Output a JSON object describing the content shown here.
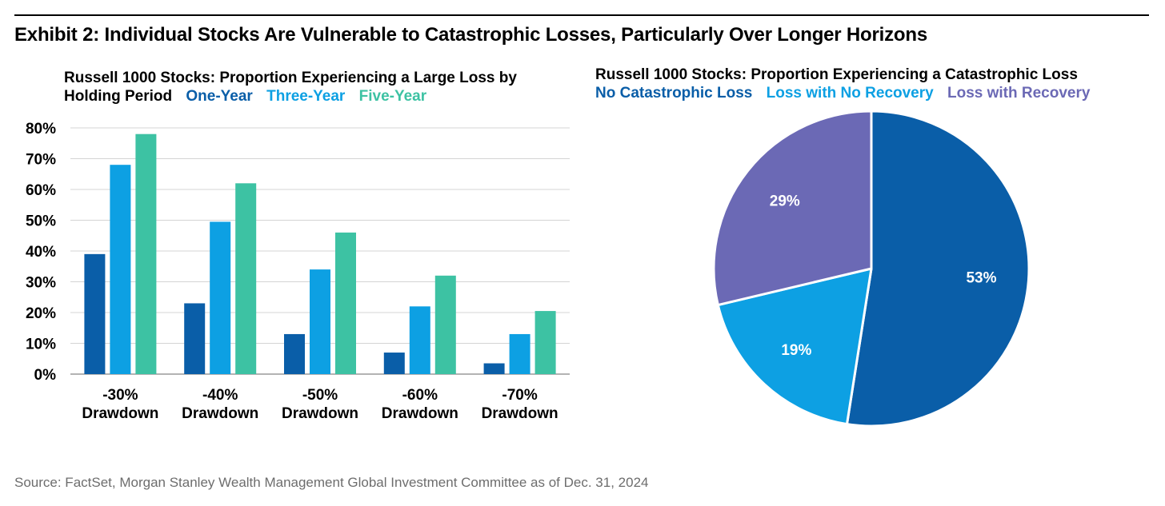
{
  "exhibit_title": "Exhibit 2: Individual Stocks Are Vulnerable to Catastrophic Losses, Particularly Over Longer Horizons",
  "source": "Source: FactSet, Morgan Stanley Wealth Management Global Investment Committee as of Dec. 31, 2024",
  "chart_data": [
    {
      "type": "bar",
      "title": "Russell 1000 Stocks: Proportion Experiencing a Large Loss by Holding Period",
      "title_line1": "Russell 1000 Stocks: Proportion Experiencing a Large Loss by",
      "title_line2": "Holding Period",
      "categories": [
        {
          "line1": "-30%",
          "line2": "Drawdown"
        },
        {
          "line1": "-40%",
          "line2": "Drawdown"
        },
        {
          "line1": "-50%",
          "line2": "Drawdown"
        },
        {
          "line1": "-60%",
          "line2": "Drawdown"
        },
        {
          "line1": "-70%",
          "line2": "Drawdown"
        }
      ],
      "series": [
        {
          "name": "One-Year",
          "color": "#0a5ea8",
          "values": [
            39,
            23,
            13,
            7,
            3.5
          ]
        },
        {
          "name": "Three-Year",
          "color": "#0da0e3",
          "values": [
            68,
            49.5,
            34,
            22,
            13
          ]
        },
        {
          "name": "Five-Year",
          "color": "#3dc2a3",
          "values": [
            78,
            62,
            46,
            32,
            20.5
          ]
        }
      ],
      "ylim": [
        0,
        80
      ],
      "yticks": [
        "0%",
        "10%",
        "20%",
        "30%",
        "40%",
        "50%",
        "60%",
        "70%",
        "80%"
      ],
      "grid": true,
      "legend": "inline-title"
    },
    {
      "type": "pie",
      "title": "Russell 1000 Stocks: Proportion Experiencing a Catastrophic Loss",
      "slices": [
        {
          "name": "No Catastrophic Loss",
          "value": 53,
          "label": "53%",
          "color": "#0a5ea8"
        },
        {
          "name": "Loss with No Recovery",
          "value": 19,
          "label": "19%",
          "color": "#0da0e3"
        },
        {
          "name": "Loss with Recovery",
          "value": 29,
          "label": "29%",
          "color": "#6b69b5"
        }
      ],
      "legend": "top"
    }
  ]
}
